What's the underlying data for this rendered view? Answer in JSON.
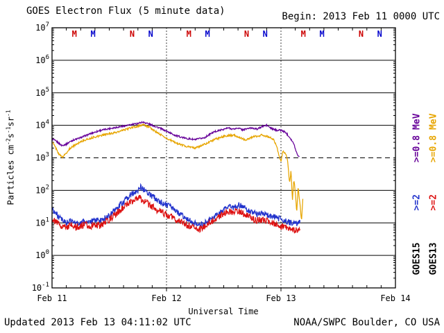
{
  "header": {
    "title": "GOES Electron Flux (5 minute data)",
    "begin": "Begin: 2013 Feb 11 0000 UTC"
  },
  "footer": {
    "updated": "Updated 2013 Feb 13 04:11:02 UTC",
    "source": "NOAA/SWPC Boulder, CO USA"
  },
  "axes": {
    "x_title": "Universal Time",
    "x_ticks": [
      "Feb 11",
      "Feb 12",
      "Feb 13",
      "Feb 14"
    ],
    "y_title_prefix": "Particles",
    "y_units": [
      [
        "cm",
        "-2"
      ],
      [
        "s",
        "-1"
      ],
      [
        "sr",
        "-1"
      ]
    ],
    "y_exponents": [
      7,
      6,
      5,
      4,
      3,
      2,
      1,
      0,
      -1
    ]
  },
  "legend": {
    "columns": [
      {
        "satellite": "GOES15",
        "ch_high": ">=2",
        "ch_low": ">=0.8",
        "unit": "MeV",
        "ch_high_color": "#2233cc",
        "ch_low_color": "#660099"
      },
      {
        "satellite": "GOES13",
        "ch_high": ">=2",
        "ch_low": ">=0.8",
        "unit": "MeV",
        "ch_high_color": "#dd1111",
        "ch_low_color": "#e7a500"
      }
    ]
  },
  "colors": {
    "axis": "#000000",
    "marker_red": "#cc0000",
    "marker_blue": "#0000cc"
  },
  "chart_data": {
    "type": "line",
    "title": "GOES Electron Flux (5 minute data)",
    "xlabel": "Universal Time",
    "ylabel": "Particles cm^-2 s^-1 sr^-1",
    "x_unit": "hours since 2013 Feb 11 0000 UTC",
    "x_range_hours": [
      0,
      72
    ],
    "x_tick_hours": [
      0,
      24,
      48,
      72
    ],
    "day_line_hours": [
      24,
      48
    ],
    "y_scale": "log10",
    "y_range_log10": [
      -1,
      7
    ],
    "threshold_log": 3,
    "grid": "horizontal-decades",
    "legend_position": "right-rotated",
    "points_format": "[hour, log10_flux]",
    "series": [
      {
        "name": "GOES15 >=0.8 MeV",
        "color": "#660099",
        "noise": 0.025,
        "points": [
          [
            0,
            3.58
          ],
          [
            1,
            3.5
          ],
          [
            2,
            3.38
          ],
          [
            3,
            3.42
          ],
          [
            4,
            3.52
          ],
          [
            6,
            3.62
          ],
          [
            8,
            3.74
          ],
          [
            10,
            3.84
          ],
          [
            12,
            3.9
          ],
          [
            14,
            3.95
          ],
          [
            16,
            4.0
          ],
          [
            18,
            4.06
          ],
          [
            19,
            4.1
          ],
          [
            20,
            4.06
          ],
          [
            21,
            4.0
          ],
          [
            22,
            3.95
          ],
          [
            24,
            3.82
          ],
          [
            26,
            3.68
          ],
          [
            28,
            3.6
          ],
          [
            30,
            3.56
          ],
          [
            32,
            3.62
          ],
          [
            33,
            3.72
          ],
          [
            34,
            3.8
          ],
          [
            36,
            3.88
          ],
          [
            37,
            3.92
          ],
          [
            38,
            3.88
          ],
          [
            39,
            3.92
          ],
          [
            40,
            3.86
          ],
          [
            41,
            3.9
          ],
          [
            42,
            3.92
          ],
          [
            43,
            3.88
          ],
          [
            44,
            3.96
          ],
          [
            45,
            4.0
          ],
          [
            46,
            3.9
          ],
          [
            47,
            3.85
          ],
          [
            48,
            3.85
          ],
          [
            49,
            3.78
          ],
          [
            50,
            3.6
          ],
          [
            50.7,
            3.42
          ],
          [
            51.3,
            3.15
          ],
          [
            51.9,
            3.0
          ]
        ]
      },
      {
        "name": "GOES13 >=0.8 MeV",
        "color": "#e7a500",
        "noise": 0.03,
        "points": [
          [
            0,
            3.5
          ],
          [
            0.8,
            3.3
          ],
          [
            1.5,
            3.1
          ],
          [
            2.2,
            3.02
          ],
          [
            3,
            3.15
          ],
          [
            4,
            3.32
          ],
          [
            6,
            3.5
          ],
          [
            8,
            3.6
          ],
          [
            10,
            3.68
          ],
          [
            12,
            3.74
          ],
          [
            14,
            3.8
          ],
          [
            16,
            3.9
          ],
          [
            18,
            3.97
          ],
          [
            19,
            4.02
          ],
          [
            20,
            3.97
          ],
          [
            21,
            3.88
          ],
          [
            22,
            3.78
          ],
          [
            24,
            3.6
          ],
          [
            26,
            3.46
          ],
          [
            28,
            3.36
          ],
          [
            30,
            3.3
          ],
          [
            32,
            3.42
          ],
          [
            34,
            3.56
          ],
          [
            36,
            3.66
          ],
          [
            38,
            3.7
          ],
          [
            39.5,
            3.62
          ],
          [
            40.5,
            3.55
          ],
          [
            42,
            3.64
          ],
          [
            44,
            3.7
          ],
          [
            45.5,
            3.64
          ],
          [
            46.5,
            3.55
          ],
          [
            47.2,
            3.3
          ],
          [
            47.7,
            3.02
          ],
          [
            48,
            2.88
          ],
          [
            48.4,
            3.22
          ],
          [
            49,
            3.12
          ],
          [
            49.4,
            2.9
          ],
          [
            49.8,
            2.2
          ],
          [
            50.1,
            2.6
          ],
          [
            50.4,
            1.7
          ],
          [
            50.7,
            2.35
          ],
          [
            51,
            1.95
          ],
          [
            51.3,
            1.3
          ],
          [
            51.6,
            2.1
          ],
          [
            52,
            1.55
          ],
          [
            52.3,
            1.05
          ],
          [
            52.6,
            1.75
          ]
        ]
      },
      {
        "name": "GOES15 >=2 MeV",
        "color": "#2233cc",
        "noise": 0.095,
        "points": [
          [
            0,
            1.45
          ],
          [
            1,
            1.25
          ],
          [
            2,
            1.08
          ],
          [
            3,
            1.0
          ],
          [
            4,
            1.06
          ],
          [
            5,
            0.97
          ],
          [
            6,
            1.02
          ],
          [
            7,
            1.06
          ],
          [
            8,
            1.0
          ],
          [
            9,
            1.1
          ],
          [
            10,
            1.06
          ],
          [
            11,
            1.14
          ],
          [
            12,
            1.22
          ],
          [
            13,
            1.35
          ],
          [
            14,
            1.5
          ],
          [
            15,
            1.65
          ],
          [
            16,
            1.8
          ],
          [
            17,
            1.92
          ],
          [
            18,
            2.02
          ],
          [
            18.6,
            2.1
          ],
          [
            19.2,
            2.02
          ],
          [
            20,
            1.95
          ],
          [
            21,
            1.82
          ],
          [
            22,
            1.72
          ],
          [
            23,
            1.62
          ],
          [
            24,
            1.56
          ],
          [
            25,
            1.46
          ],
          [
            26,
            1.36
          ],
          [
            27,
            1.26
          ],
          [
            28,
            1.16
          ],
          [
            29,
            1.06
          ],
          [
            30,
            0.98
          ],
          [
            31,
            0.92
          ],
          [
            32,
            1.0
          ],
          [
            33,
            1.1
          ],
          [
            34,
            1.2
          ],
          [
            35,
            1.3
          ],
          [
            36,
            1.42
          ],
          [
            37,
            1.52
          ],
          [
            38,
            1.46
          ],
          [
            39,
            1.55
          ],
          [
            40,
            1.5
          ],
          [
            41,
            1.4
          ],
          [
            42,
            1.32
          ],
          [
            43,
            1.26
          ],
          [
            44,
            1.3
          ],
          [
            45,
            1.26
          ],
          [
            46,
            1.2
          ],
          [
            47,
            1.16
          ],
          [
            48,
            1.1
          ],
          [
            49,
            1.06
          ],
          [
            50,
            1.0
          ],
          [
            51,
            0.96
          ],
          [
            52,
            1.02
          ]
        ]
      },
      {
        "name": "GOES13 >=2 MeV",
        "color": "#dd1111",
        "noise": 0.105,
        "points": [
          [
            0,
            1.12
          ],
          [
            1,
            1.0
          ],
          [
            2,
            0.92
          ],
          [
            3,
            0.86
          ],
          [
            4,
            0.92
          ],
          [
            5,
            0.86
          ],
          [
            6,
            0.9
          ],
          [
            7,
            0.95
          ],
          [
            8,
            0.9
          ],
          [
            9,
            0.95
          ],
          [
            10,
            0.92
          ],
          [
            11,
            1.0
          ],
          [
            12,
            1.1
          ],
          [
            13,
            1.22
          ],
          [
            14,
            1.35
          ],
          [
            15,
            1.46
          ],
          [
            16,
            1.6
          ],
          [
            17,
            1.7
          ],
          [
            18,
            1.78
          ],
          [
            19,
            1.7
          ],
          [
            20,
            1.6
          ],
          [
            21,
            1.5
          ],
          [
            22,
            1.4
          ],
          [
            23,
            1.32
          ],
          [
            24,
            1.26
          ],
          [
            25,
            1.2
          ],
          [
            26,
            1.1
          ],
          [
            27,
            1.02
          ],
          [
            28,
            0.96
          ],
          [
            29,
            0.9
          ],
          [
            30,
            0.86
          ],
          [
            31,
            0.8
          ],
          [
            32,
            0.9
          ],
          [
            33,
            1.0
          ],
          [
            34,
            1.1
          ],
          [
            35,
            1.2
          ],
          [
            36,
            1.3
          ],
          [
            37,
            1.36
          ],
          [
            38,
            1.3
          ],
          [
            39,
            1.36
          ],
          [
            40,
            1.28
          ],
          [
            41,
            1.2
          ],
          [
            42,
            1.12
          ],
          [
            43,
            1.06
          ],
          [
            44,
            1.1
          ],
          [
            45,
            1.06
          ],
          [
            46,
            1.0
          ],
          [
            47,
            0.95
          ],
          [
            48,
            0.9
          ],
          [
            49,
            0.86
          ],
          [
            50,
            0.8
          ],
          [
            51,
            0.76
          ],
          [
            52,
            0.82
          ]
        ]
      }
    ],
    "satellite_markers": [
      {
        "label": "M",
        "satellite": "GOES13",
        "color": "#cc0000",
        "hour": 4.7
      },
      {
        "label": "M",
        "satellite": "GOES15",
        "color": "#0000cc",
        "hour": 8.6
      },
      {
        "label": "N",
        "satellite": "GOES13",
        "color": "#cc0000",
        "hour": 16.8
      },
      {
        "label": "N",
        "satellite": "GOES15",
        "color": "#0000cc",
        "hour": 20.7
      },
      {
        "label": "M",
        "satellite": "GOES13",
        "color": "#cc0000",
        "hour": 28.7
      },
      {
        "label": "M",
        "satellite": "GOES15",
        "color": "#0000cc",
        "hour": 32.6
      },
      {
        "label": "N",
        "satellite": "GOES13",
        "color": "#cc0000",
        "hour": 40.8
      },
      {
        "label": "N",
        "satellite": "GOES15",
        "color": "#0000cc",
        "hour": 44.7
      },
      {
        "label": "M",
        "satellite": "GOES13",
        "color": "#cc0000",
        "hour": 52.7
      },
      {
        "label": "M",
        "satellite": "GOES15",
        "color": "#0000cc",
        "hour": 56.6
      },
      {
        "label": "N",
        "satellite": "GOES13",
        "color": "#cc0000",
        "hour": 64.8
      },
      {
        "label": "N",
        "satellite": "GOES15",
        "color": "#0000cc",
        "hour": 68.7
      }
    ]
  }
}
